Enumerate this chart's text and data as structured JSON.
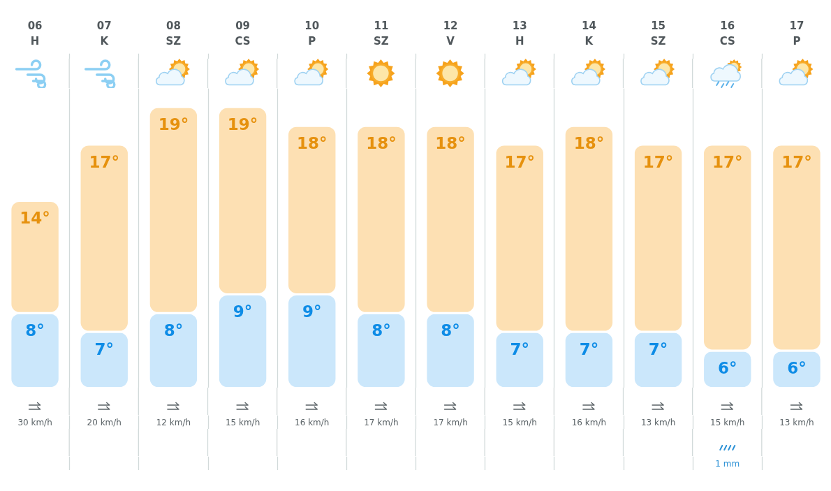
{
  "chart_data": [
    {
      "type": "bar",
      "stacked": true,
      "categories": [
        "06\nH",
        "07\nK",
        "08\nSZ",
        "09\nCS",
        "10\nP",
        "11\nSZ",
        "12\nV",
        "13\nH",
        "14\nK",
        "15\nSZ",
        "16\nCS",
        "17\nP"
      ],
      "series": [
        {
          "color": "#cbe7fb",
          "values": [
            8,
            7,
            8,
            9,
            9,
            8,
            8,
            7,
            7,
            7,
            6,
            6
          ],
          "value_labels": [
            "8°",
            "7°",
            "8°",
            "9°",
            "9°",
            "8°",
            "8°",
            "7°",
            "7°",
            "7°",
            "6°",
            "6°"
          ]
        },
        {
          "color": "#fde0b3",
          "values": [
            6,
            10,
            11,
            10,
            9,
            10,
            10,
            10,
            11,
            10,
            11,
            11
          ]
        }
      ],
      "totals": [
        "14°",
        "17°",
        "19°",
        "19°",
        "18°",
        "18°",
        "18°",
        "17°",
        "18°",
        "17°",
        "17°",
        "17°"
      ],
      "ylim": [
        4,
        20
      ],
      "grid": "x",
      "tick_labels": "x"
    },
    {
      "type": "other",
      "categories": [
        "30 km/h",
        "20 km/h",
        "12 km/h",
        "15 km/h",
        "16 km/h",
        "17 km/h",
        "17 km/h",
        "15 km/h",
        "16 km/h",
        "13 km/h",
        "15 km/h",
        "13 km/h"
      ]
    },
    {
      "type": "other",
      "categories": [
        null,
        null,
        null,
        null,
        null,
        null,
        null,
        null,
        null,
        null,
        "1 mm",
        null
      ]
    }
  ]
}
